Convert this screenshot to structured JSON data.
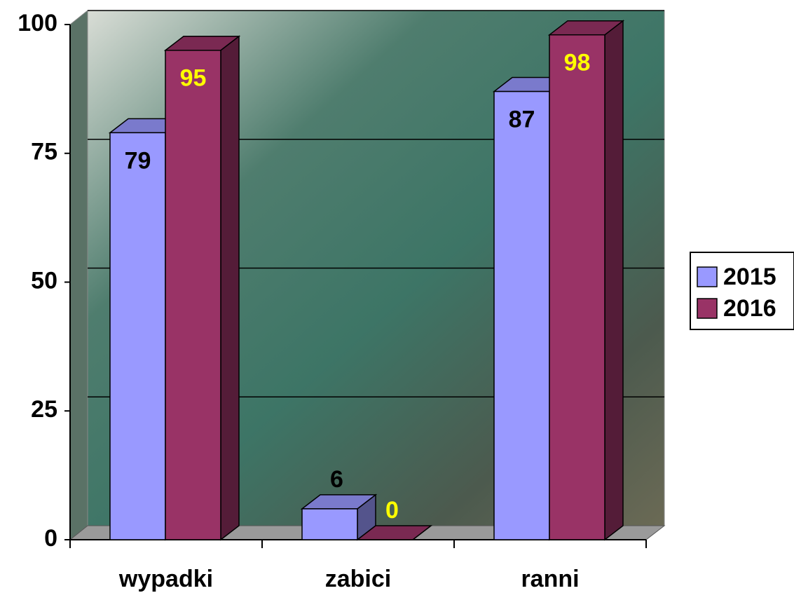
{
  "chart_data": {
    "type": "bar3d",
    "categories": [
      "wypadki",
      "zabici",
      "ranni"
    ],
    "series": [
      {
        "name": "2015",
        "color": "#9999ff",
        "label_color": "#000000",
        "values": [
          79,
          6,
          87
        ]
      },
      {
        "name": "2016",
        "color": "#993366",
        "label_color": "#ffff00",
        "values": [
          95,
          0,
          98
        ]
      }
    ],
    "ylim": [
      0,
      100
    ],
    "yticks": [
      0,
      25,
      50,
      75,
      100
    ],
    "grid": true,
    "legend": "right"
  }
}
